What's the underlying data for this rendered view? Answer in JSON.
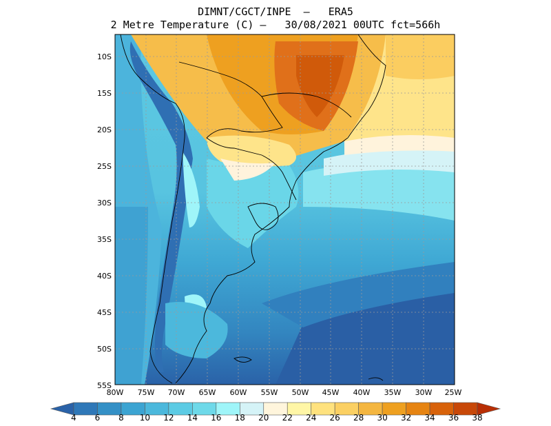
{
  "title": {
    "line1": "DIMNT/CGCT/INPE  –   ERA5",
    "line2": "2 Metre Temperature (C) –   30/08/2021 00UTC fct=566h"
  },
  "map": {
    "lat_ticks": [
      "10S",
      "15S",
      "20S",
      "25S",
      "30S",
      "35S",
      "40S",
      "45S",
      "50S",
      "55S"
    ],
    "lon_ticks": [
      "80W",
      "75W",
      "70W",
      "65W",
      "60W",
      "55W",
      "50W",
      "45W",
      "40W",
      "35W",
      "30W",
      "25W"
    ],
    "lat_range": [
      -55,
      -7
    ],
    "lon_range": [
      -80,
      -25
    ],
    "grid": true
  },
  "colorbar": {
    "labels": [
      "4",
      "6",
      "8",
      "10",
      "12",
      "14",
      "16",
      "18",
      "20",
      "22",
      "24",
      "26",
      "28",
      "30",
      "32",
      "34",
      "36",
      "38"
    ],
    "colors": [
      "#2a62a8",
      "#2f78b8",
      "#3490c6",
      "#3ca4d2",
      "#4bb8dc",
      "#5ccbe4",
      "#6ed9e9",
      "#9ff5f9",
      "#d5f3f7",
      "#fff5dc",
      "#fff6a6",
      "#ffe27e",
      "#fbd063",
      "#f4b640",
      "#eea020",
      "#e68412",
      "#d8620a",
      "#c84808",
      "#b82e04"
    ]
  },
  "colors": {
    "cold_far": "#2a5fa5",
    "cold": "#3c9ad0",
    "cool": "#55c3e0",
    "mild": "#86e3ef",
    "neutral": "#fff3dc",
    "warm": "#fee48a",
    "hot": "#f4b442",
    "very_hot": "#e0701a"
  }
}
